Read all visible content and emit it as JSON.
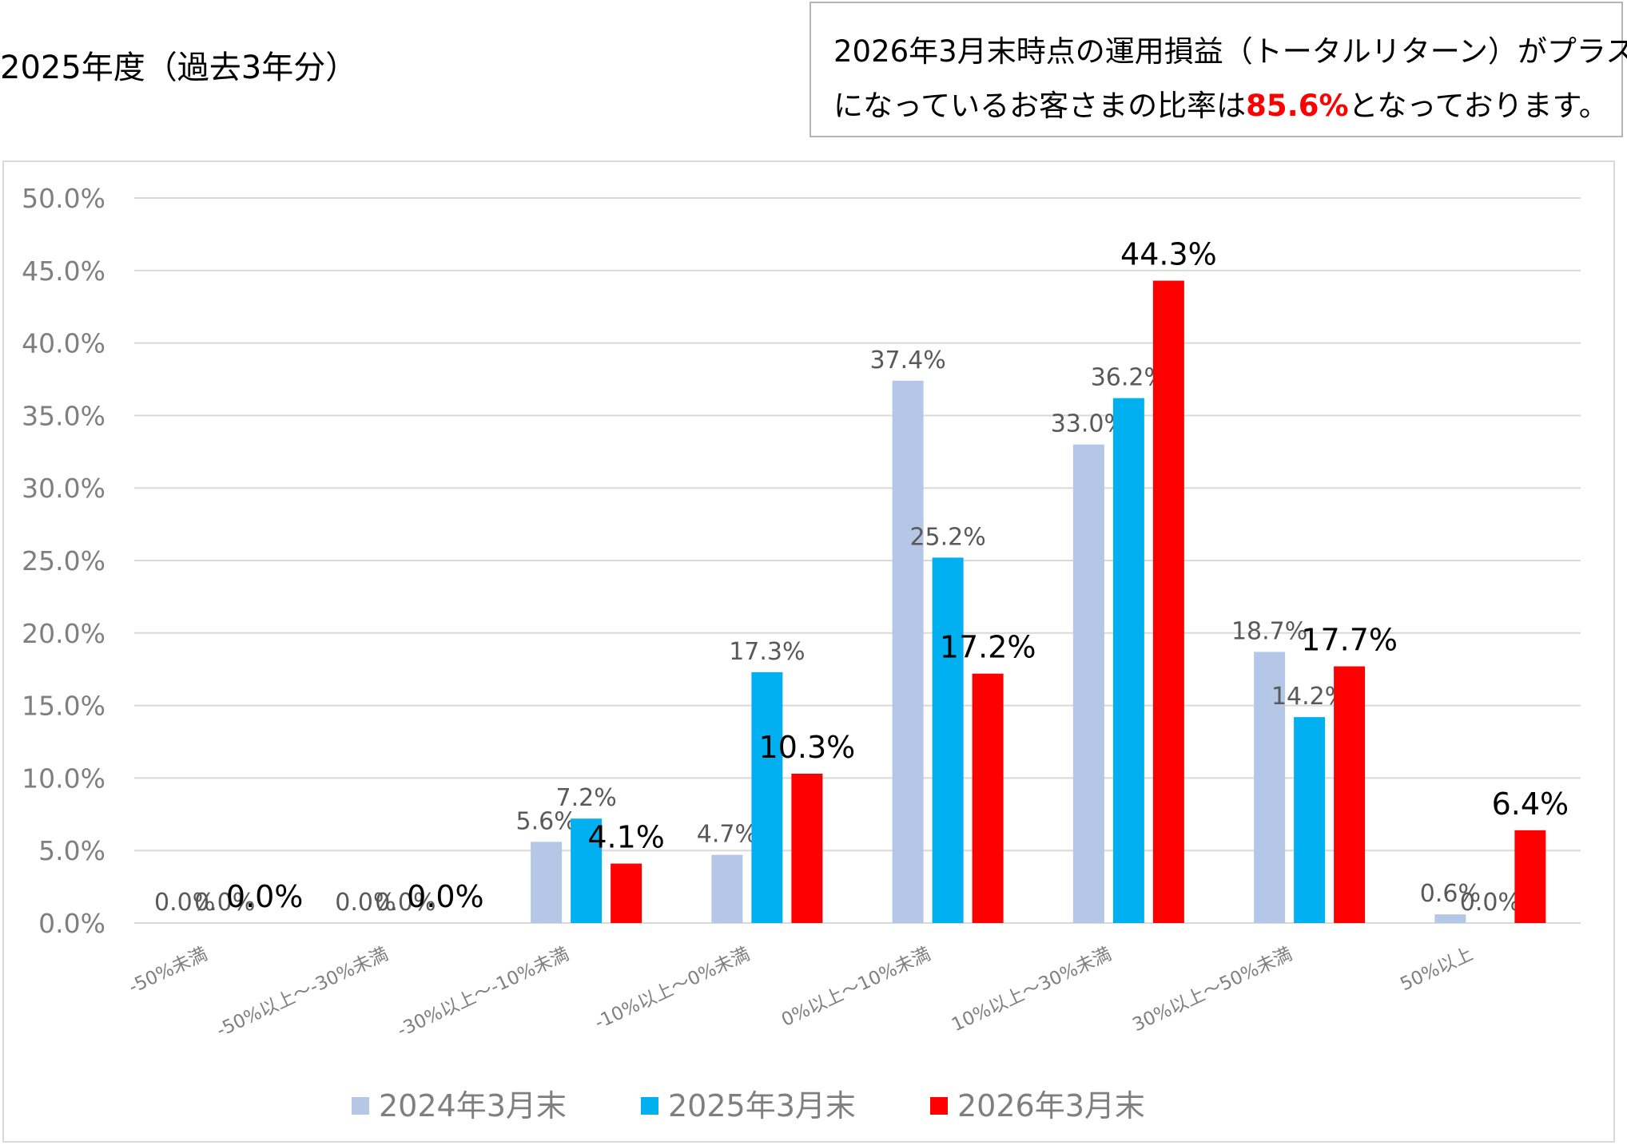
{
  "page_title": "2025年度（過去3年分）",
  "note": {
    "line1": "2026年3月末時点の運用損益（トータルリターン）がプラス",
    "line2_before": "になっているお客さまの比率は",
    "highlight": "85.6%",
    "line2_after": "となっております。",
    "highlight_color": "#ff0000"
  },
  "chart_data": {
    "type": "bar",
    "categories": [
      "-50%未満",
      "-50%以上～-30%未満",
      "-30%以上～-10%未満",
      "-10%以上～0%未満",
      "0%以上～10%未満",
      "10%以上～30%未満",
      "30%以上～50%未満",
      "50%以上"
    ],
    "series": [
      {
        "name": "2024年3月末",
        "color": "#b4c7e7",
        "values": [
          0.0,
          0.0,
          5.6,
          4.7,
          37.4,
          33.0,
          18.7,
          0.6
        ],
        "labels": [
          "0.0%",
          "0.0%",
          "5.6%",
          "4.7%",
          "37.4%",
          "33.0%",
          "18.7%",
          "0.6%"
        ]
      },
      {
        "name": "2025年3月末",
        "color": "#00b0f0",
        "values": [
          0.0,
          0.0,
          7.2,
          17.3,
          25.2,
          36.2,
          14.2,
          0.0
        ],
        "labels": [
          "0.0%",
          "0.0%",
          "7.2%",
          "17.3%",
          "25.2%",
          "36.2%",
          "14.2%",
          "0.0%"
        ]
      },
      {
        "name": "2026年3月末",
        "color": "#ff0000",
        "values": [
          0.0,
          0.0,
          4.1,
          10.3,
          17.2,
          44.3,
          17.7,
          6.4
        ],
        "labels": [
          "0.0%",
          "0.0%",
          "4.1%",
          "10.3%",
          "17.2%",
          "44.3%",
          "17.7%",
          "6.4%"
        ]
      }
    ],
    "y_ticks": [
      "0.0%",
      "5.0%",
      "10.0%",
      "15.0%",
      "20.0%",
      "25.0%",
      "30.0%",
      "35.0%",
      "40.0%",
      "45.0%",
      "50.0%"
    ],
    "ylim": [
      0,
      50
    ],
    "grid": true,
    "legend_position": "bottom"
  }
}
